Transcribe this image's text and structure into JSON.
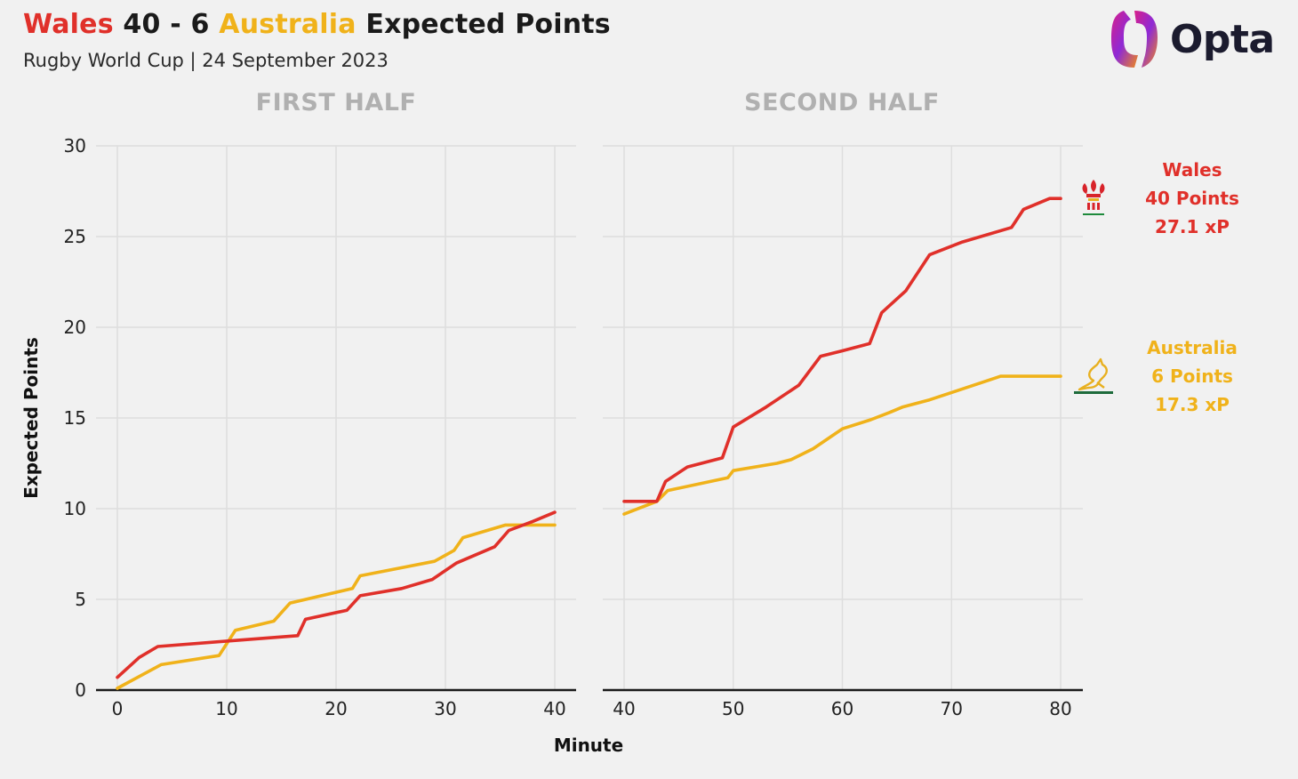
{
  "header": {
    "home_team": "Wales",
    "home_score": "40",
    "separator": "-",
    "away_score": "6",
    "away_team": "Australia",
    "title_suffix": "Expected Points",
    "subtitle": "Rugby World Cup | 24 September 2023",
    "brand": "Opta"
  },
  "colors": {
    "wales": "#e0302a",
    "australia": "#f0b21a",
    "grid": "#dedede",
    "axis": "#1a1a1a"
  },
  "legend": {
    "wales": {
      "name": "Wales",
      "points": "40 Points",
      "xp": "27.1 xP",
      "icon": "prince-of-wales-feathers-icon"
    },
    "australia": {
      "name": "Australia",
      "points": "6 Points",
      "xp": "17.3 xP",
      "icon": "wallabies-kangaroo-icon"
    }
  },
  "chart_data": {
    "type": "line",
    "ylabel": "Expected Points",
    "xlabel": "Minute",
    "ylim": [
      0,
      30
    ],
    "yticks": [
      0,
      5,
      10,
      15,
      20,
      25,
      30
    ],
    "grid": true,
    "panels": [
      {
        "title": "FIRST HALF",
        "xlim": [
          0,
          40
        ],
        "xticks": [
          0,
          10,
          20,
          30,
          40
        ],
        "series": [
          {
            "name": "Wales",
            "points": [
              [
                0,
                0.7
              ],
              [
                2,
                1.8
              ],
              [
                3.7,
                2.4
              ],
              [
                10,
                2.7
              ],
              [
                16.5,
                3.0
              ],
              [
                17.2,
                3.9
              ],
              [
                21,
                4.4
              ],
              [
                22.2,
                5.2
              ],
              [
                26,
                5.6
              ],
              [
                28.8,
                6.1
              ],
              [
                31,
                7.0
              ],
              [
                34.5,
                7.9
              ],
              [
                35.8,
                8.8
              ],
              [
                38,
                9.3
              ],
              [
                40,
                9.8
              ]
            ]
          },
          {
            "name": "Australia",
            "points": [
              [
                0,
                0.1
              ],
              [
                4,
                1.4
              ],
              [
                9.3,
                1.9
              ],
              [
                10.8,
                3.3
              ],
              [
                14.3,
                3.8
              ],
              [
                15.8,
                4.8
              ],
              [
                21.5,
                5.6
              ],
              [
                22.2,
                6.3
              ],
              [
                29,
                7.1
              ],
              [
                30.8,
                7.7
              ],
              [
                31.6,
                8.4
              ],
              [
                35.5,
                9.1
              ],
              [
                40,
                9.1
              ]
            ]
          }
        ]
      },
      {
        "title": "SECOND HALF",
        "xlim": [
          40,
          80
        ],
        "xticks": [
          40,
          50,
          60,
          70,
          80
        ],
        "series": [
          {
            "name": "Wales",
            "points": [
              [
                40,
                10.4
              ],
              [
                43,
                10.4
              ],
              [
                43.8,
                11.5
              ],
              [
                45.8,
                12.3
              ],
              [
                49,
                12.8
              ],
              [
                50,
                14.5
              ],
              [
                53,
                15.6
              ],
              [
                56,
                16.8
              ],
              [
                58,
                18.4
              ],
              [
                60,
                18.7
              ],
              [
                62.5,
                19.1
              ],
              [
                63.6,
                20.8
              ],
              [
                65.8,
                22.0
              ],
              [
                68,
                24.0
              ],
              [
                71,
                24.7
              ],
              [
                75.5,
                25.5
              ],
              [
                76.6,
                26.5
              ],
              [
                79,
                27.1
              ],
              [
                80,
                27.1
              ]
            ]
          },
          {
            "name": "Australia",
            "points": [
              [
                40,
                9.7
              ],
              [
                43,
                10.4
              ],
              [
                44,
                11.0
              ],
              [
                49.5,
                11.7
              ],
              [
                50,
                12.1
              ],
              [
                54,
                12.5
              ],
              [
                55.3,
                12.7
              ],
              [
                57.3,
                13.3
              ],
              [
                60,
                14.4
              ],
              [
                62.6,
                14.9
              ],
              [
                64.3,
                15.3
              ],
              [
                65.5,
                15.6
              ],
              [
                68,
                16.0
              ],
              [
                70,
                16.4
              ],
              [
                73.5,
                17.1
              ],
              [
                74.5,
                17.3
              ],
              [
                80,
                17.3
              ]
            ]
          }
        ]
      }
    ]
  }
}
